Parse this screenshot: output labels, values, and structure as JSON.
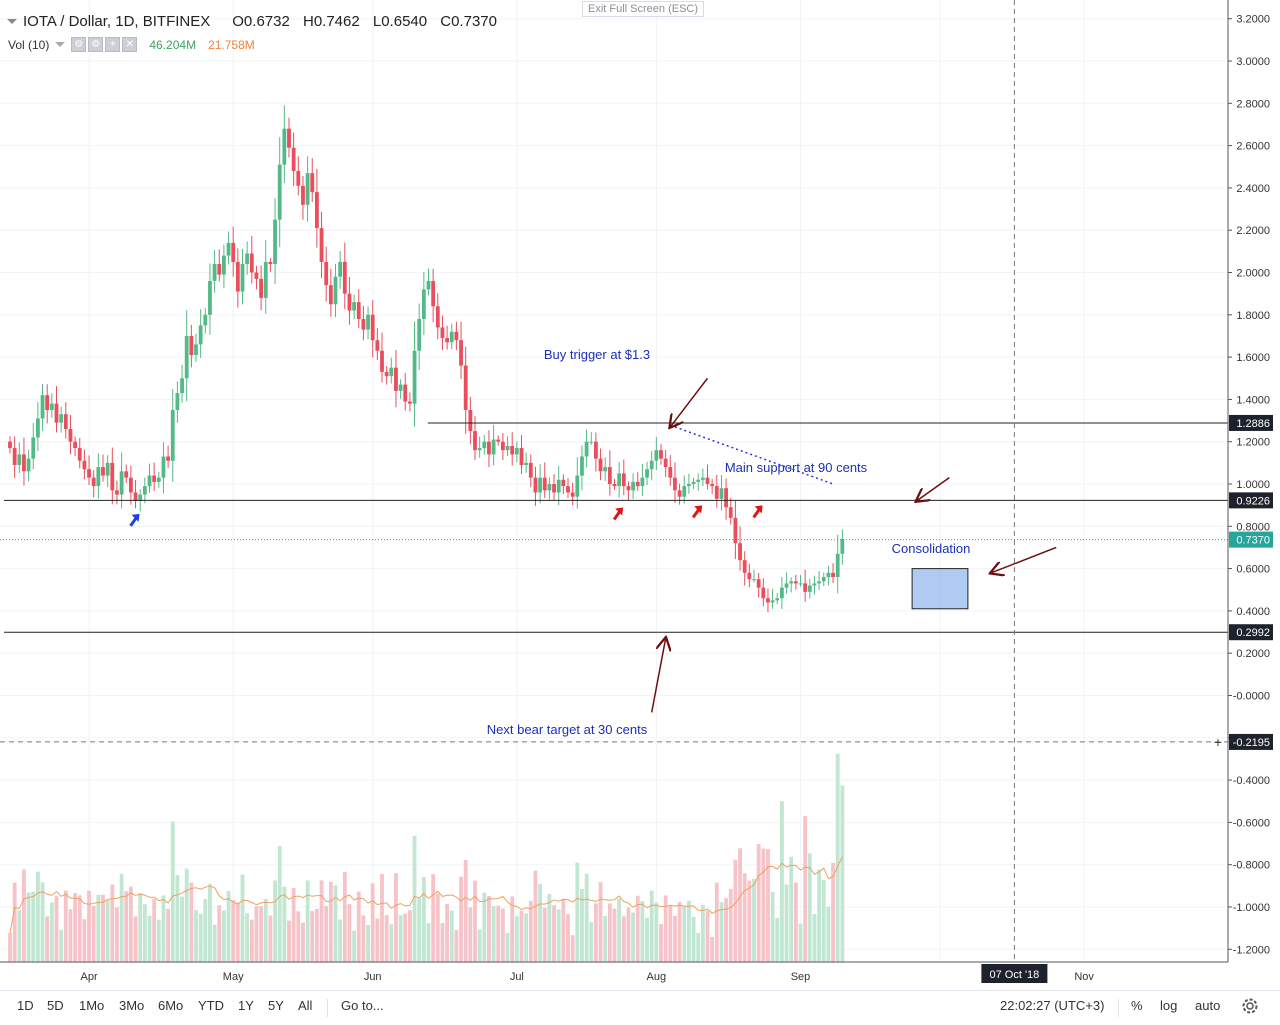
{
  "header": {
    "symbol": "IOTA / Dollar, 1D, BITFINEX",
    "open": "O0.6732",
    "high": "H0.7462",
    "low": "L0.6540",
    "close": "C0.7370",
    "vol_label": "Vol (10)",
    "vol_value": "46.204M",
    "vol_ma": "21.758M",
    "exit_fullscreen": "Exit Full Screen (ESC)"
  },
  "chart_data": {
    "type": "candlestick",
    "title": "IOTA / Dollar, 1D, BITFINEX",
    "y_axis": {
      "ticks": [
        "3.2000",
        "3.0000",
        "2.8000",
        "2.6000",
        "2.4000",
        "2.2000",
        "2.0000",
        "1.8000",
        "1.6000",
        "1.4000",
        "1.2000",
        "1.0000",
        "0.8000",
        "0.6000",
        "0.4000",
        "0.2000",
        "-0.0000",
        "-0.2000",
        "-0.4000",
        "-0.6000",
        "-0.8000",
        "-1.0000",
        "-1.2000"
      ]
    },
    "x_axis": {
      "ticks": [
        "Apr",
        "May",
        "Jun",
        "Jul",
        "Aug",
        "Sep",
        "Oct",
        "Nov"
      ]
    },
    "price_labels": [
      {
        "text": "1.2886",
        "value": 1.2886,
        "style": "dark"
      },
      {
        "text": "0.9226",
        "value": 0.9226,
        "style": "dark"
      },
      {
        "text": "0.7370",
        "value": 0.737,
        "style": "teal"
      },
      {
        "text": "0.2992",
        "value": 0.2992,
        "style": "dark"
      },
      {
        "text": "-0.2195",
        "value": -0.2195,
        "style": "dark"
      }
    ],
    "horizontal_lines": [
      {
        "value": 1.2886,
        "from_day": 92
      },
      {
        "value": 0.9226,
        "from_day": 0
      },
      {
        "value": 0.2992,
        "from_day": 0
      }
    ],
    "crosshair": {
      "date_label": "07 Oct '18",
      "day": 216,
      "price": -0.2195
    },
    "annotations": [
      {
        "text": "Buy trigger at $1.3",
        "arrow_from": [
          150,
          1.5
        ],
        "arrow_to": [
          142,
          1.27
        ]
      },
      {
        "text": "Main support at 90 cents",
        "arrow_from": [
          202,
          1.03
        ],
        "arrow_to": [
          195,
          0.92
        ]
      },
      {
        "text": "Consolidation",
        "arrow_from": [
          225,
          0.7
        ],
        "arrow_to": [
          211,
          0.58
        ]
      },
      {
        "text": "Next bear target at 30 cents",
        "arrow_from": [
          138,
          -0.08
        ],
        "arrow_to": [
          141,
          0.27
        ]
      }
    ],
    "consolidation_box": {
      "day_start": 194,
      "day_end": 206,
      "price_top": 0.6,
      "price_bottom": 0.41
    },
    "trendline": {
      "points": [
        [
          143,
          1.27
        ],
        [
          177,
          1.0
        ]
      ],
      "style": "dotted"
    },
    "markers": [
      {
        "day": 27,
        "price": 0.84,
        "color": "blue"
      },
      {
        "day": 131,
        "price": 0.87,
        "color": "red"
      },
      {
        "day": 148,
        "price": 0.88,
        "color": "red"
      },
      {
        "day": 161,
        "price": 0.88,
        "color": "red"
      }
    ],
    "last_price": 0.737,
    "volume": {
      "label": "Vol (10)",
      "value": "46.204M",
      "ma": "21.758M"
    },
    "series": [
      {
        "name": "IOTA / Dollar",
        "x_start": "2018-03-15",
        "close": [
          1.17,
          1.09,
          1.14,
          1.06,
          1.12,
          1.22,
          1.31,
          1.42,
          1.35,
          1.38,
          1.29,
          1.33,
          1.26,
          1.2,
          1.17,
          1.11,
          1.07,
          1.03,
          0.99,
          1.08,
          1.04,
          1.1,
          0.97,
          0.95,
          1.06,
          1.03,
          0.96,
          0.92,
          0.95,
          0.99,
          1.04,
          1.01,
          1.03,
          1.13,
          1.11,
          1.35,
          1.43,
          1.5,
          1.7,
          1.61,
          1.66,
          1.75,
          1.8,
          1.96,
          2.04,
          1.99,
          2.08,
          2.14,
          2.05,
          1.91,
          2.04,
          2.09,
          2.0,
          1.97,
          1.88,
          2.05,
          2.04,
          2.25,
          2.51,
          2.68,
          2.59,
          2.48,
          2.41,
          2.32,
          2.47,
          2.38,
          2.21,
          2.05,
          1.94,
          1.85,
          1.98,
          2.05,
          1.9,
          1.82,
          1.86,
          1.78,
          1.73,
          1.8,
          1.68,
          1.63,
          1.53,
          1.51,
          1.55,
          1.44,
          1.47,
          1.39,
          1.38,
          1.63,
          1.78,
          1.92,
          1.96,
          1.84,
          1.74,
          1.69,
          1.67,
          1.72,
          1.68,
          1.56,
          1.35,
          1.25,
          1.16,
          1.17,
          1.2,
          1.14,
          1.21,
          1.2,
          1.16,
          1.18,
          1.14,
          1.17,
          1.09,
          1.1,
          1.03,
          0.96,
          1.03,
          0.97,
          1.0,
          0.96,
          1.02,
          0.99,
          0.96,
          0.94,
          1.04,
          1.13,
          1.2,
          1.2,
          1.12,
          1.06,
          1.08,
          1.0,
          0.99,
          1.05,
          0.99,
          0.97,
          1.01,
          0.99,
          1.03,
          1.07,
          1.11,
          1.16,
          1.12,
          1.08,
          1.03,
          0.97,
          0.94,
          0.99,
          1.0,
          1.01,
          1.02,
          1.03,
          1.0,
          0.99,
          0.93,
          0.98,
          0.89,
          0.84,
          0.72,
          0.64,
          0.58,
          0.55,
          0.55,
          0.51,
          0.46,
          0.44,
          0.45,
          0.46,
          0.51,
          0.53,
          0.54,
          0.53,
          0.53,
          0.49,
          0.52,
          0.53,
          0.54,
          0.56,
          0.58,
          0.56,
          0.67,
          0.74
        ]
      }
    ]
  },
  "toolbar": {
    "ranges": [
      "1D",
      "5D",
      "1Mo",
      "3Mo",
      "6Mo",
      "YTD",
      "1Y",
      "5Y",
      "All"
    ],
    "goto": "Go to...",
    "clock": "22:02:27 (UTC+3)",
    "percent": "%",
    "log": "log",
    "auto": "auto"
  },
  "colors": {
    "up": "#53b987",
    "down": "#eb4d5c",
    "up_vol": "#c1e6d1",
    "down_vol": "#f6c4c8",
    "ma": "#f0a060",
    "annot": "#1c2fb8",
    "arrow": "#6b0f0f",
    "teal": "#26a69a"
  }
}
